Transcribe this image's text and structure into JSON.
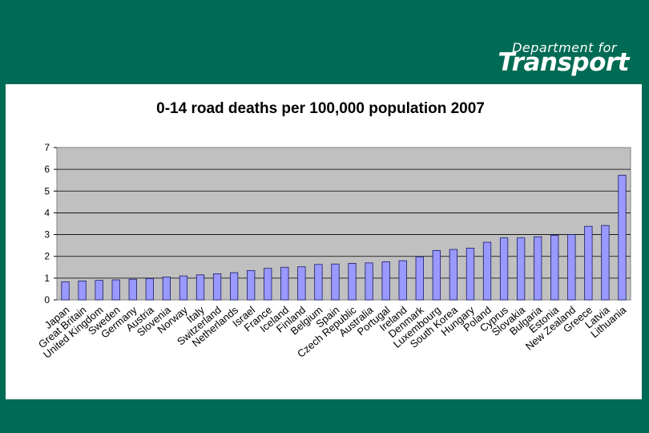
{
  "brand": {
    "line1": "Department for",
    "line2": "Transport"
  },
  "chart_data": {
    "type": "bar",
    "title": "0-14 road deaths per 100,000 population 2007",
    "xlabel": "",
    "ylabel": "",
    "ylim": [
      0,
      7
    ],
    "yticks": [
      0,
      1,
      2,
      3,
      4,
      5,
      6,
      7
    ],
    "grid": true,
    "legend": "none",
    "colors": {
      "bar": "#9999ff",
      "bar_stroke": "#1a1a66",
      "plot_bg": "#c0c0c0"
    },
    "categories": [
      "Japan",
      "Great Britain",
      "United Kingdom",
      "Sweden",
      "Germany",
      "Austria",
      "Slovenia",
      "Norway",
      "Italy",
      "Switzerland",
      "Netherlands",
      "Israel",
      "France",
      "Iceland",
      "Finland",
      "Belgium",
      "Spain",
      "Czech Republic",
      "Australia",
      "Portugal",
      "Ireland",
      "Denmark",
      "Luxembourg",
      "South Korea",
      "Hungary",
      "Poland",
      "Cyprus",
      "Slovakia",
      "Bulgaria",
      "Estonia",
      "New Zealand",
      "Greece",
      "Latvia",
      "Lithuania"
    ],
    "values": [
      0.83,
      0.87,
      0.9,
      0.92,
      0.95,
      0.98,
      1.05,
      1.1,
      1.15,
      1.2,
      1.25,
      1.35,
      1.45,
      1.5,
      1.52,
      1.63,
      1.65,
      1.68,
      1.7,
      1.75,
      1.8,
      1.98,
      2.27,
      2.32,
      2.38,
      2.65,
      2.85,
      2.85,
      2.9,
      2.97,
      3.0,
      3.38,
      3.42,
      5.73
    ]
  }
}
